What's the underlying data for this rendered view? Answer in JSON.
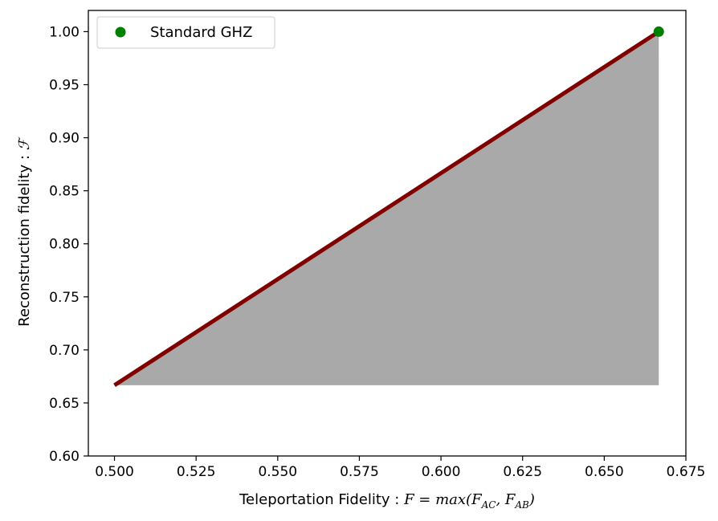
{
  "chart_data": {
    "type": "line",
    "xlabel_text": "Teleportation Fidelity : ",
    "xlabel_math": "F = max(F",
    "xlabel_sub1": "AC",
    "xlabel_sep": ", F",
    "xlabel_sub2": "AB",
    "xlabel_close": ")",
    "ylabel_text": "Reconstruction fidelity : ",
    "ylabel_math": "ℱ",
    "xlim": [
      0.492,
      0.675
    ],
    "ylim": [
      0.6,
      1.02
    ],
    "xticks": [
      "0.500",
      "0.525",
      "0.550",
      "0.575",
      "0.600",
      "0.625",
      "0.650",
      "0.675"
    ],
    "xtick_values": [
      0.5,
      0.525,
      0.55,
      0.575,
      0.6,
      0.625,
      0.65,
      0.675
    ],
    "yticks": [
      "0.60",
      "0.65",
      "0.70",
      "0.75",
      "0.80",
      "0.85",
      "0.90",
      "0.95",
      "1.00"
    ],
    "ytick_values": [
      0.6,
      0.65,
      0.7,
      0.75,
      0.8,
      0.85,
      0.9,
      0.95,
      1.0
    ],
    "grid": false,
    "legend_position": "top-left",
    "line": {
      "x": [
        0.5,
        0.6667
      ],
      "y": [
        0.6667,
        1.0
      ],
      "color": "#800000"
    },
    "shaded_region": {
      "x": [
        0.5,
        0.6667,
        0.6667
      ],
      "y": [
        0.6667,
        1.0,
        0.6667
      ],
      "color": "#a9a9a9"
    },
    "series": [
      {
        "name": "Standard GHZ",
        "x": [
          0.6667
        ],
        "y": [
          1.0
        ],
        "color": "#008000",
        "marker": "circle"
      }
    ]
  }
}
